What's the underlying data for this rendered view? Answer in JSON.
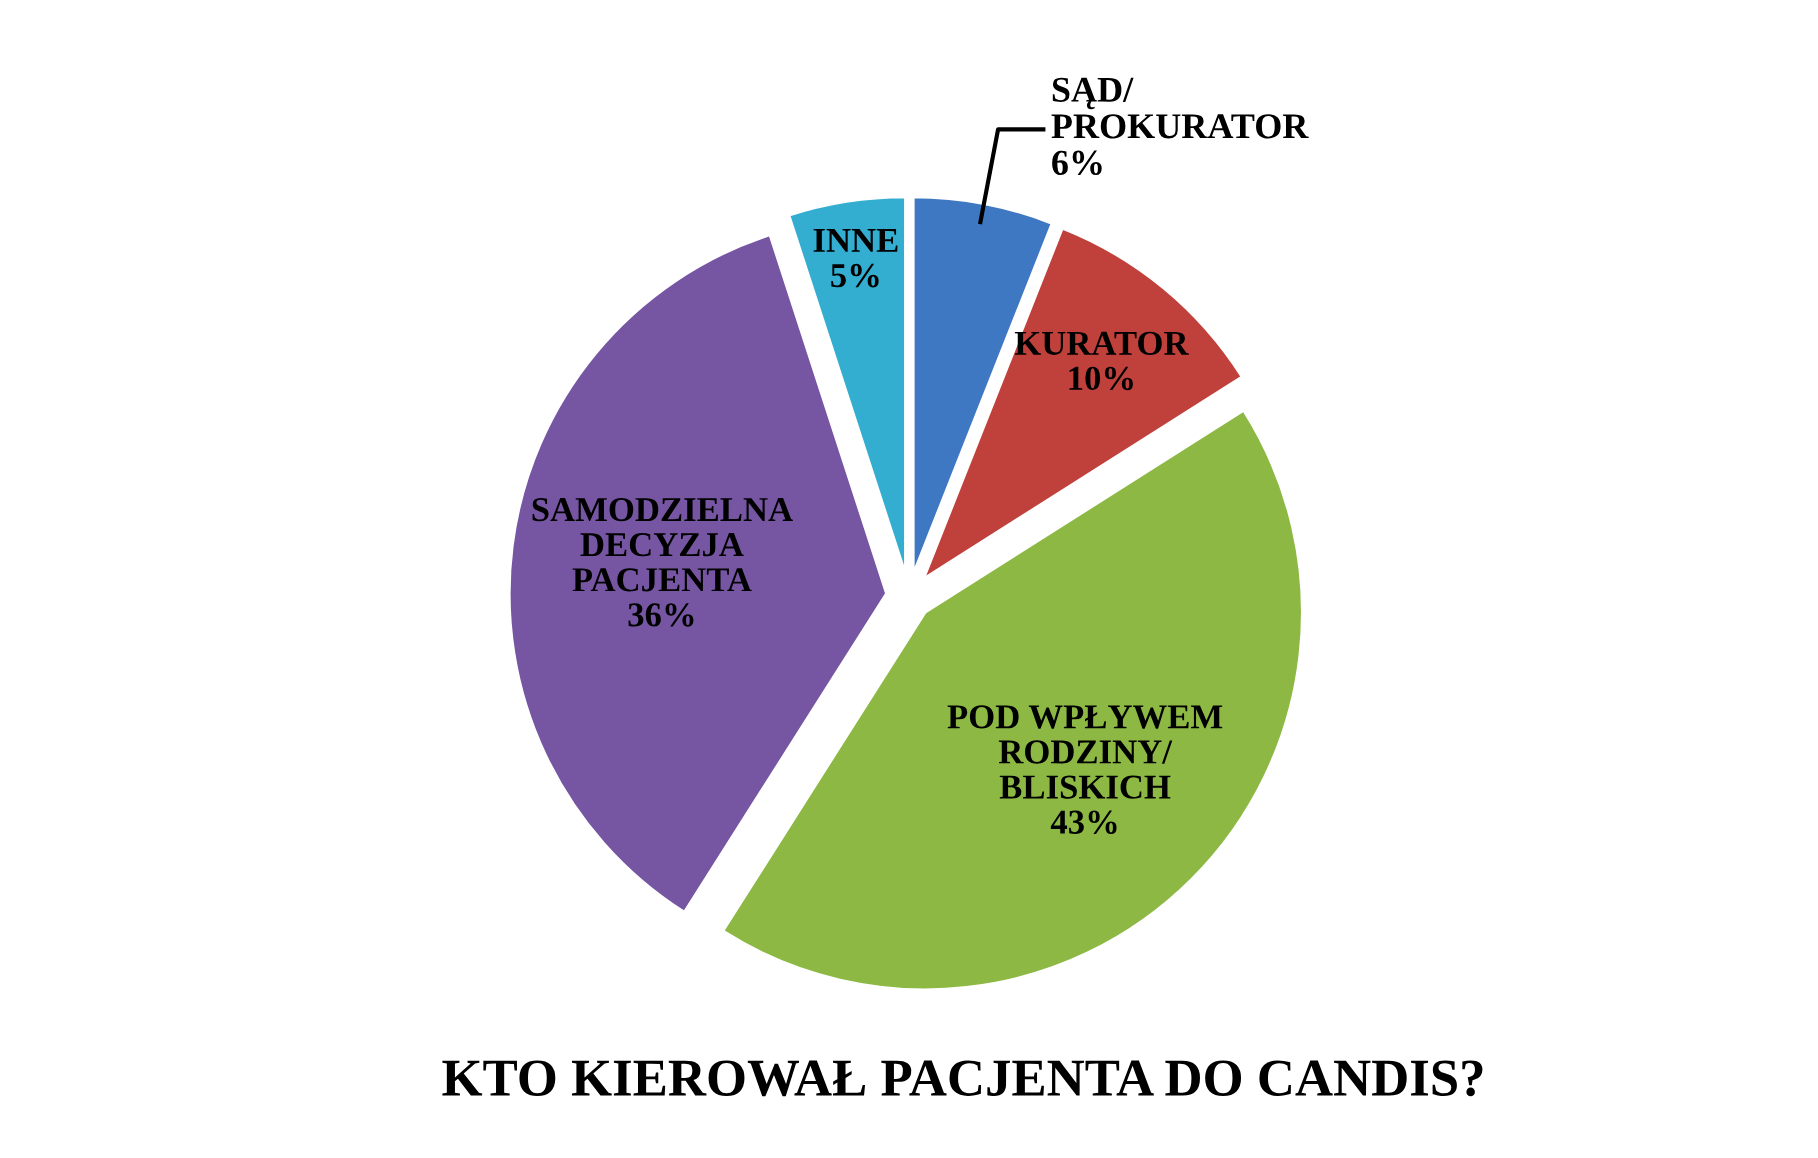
{
  "chart_data": {
    "type": "pie",
    "title": "KTO KIEROWAŁ PACJENTA DO CANDIS?",
    "categories": [
      "SĄD/\nPROKURATOR",
      "KURATOR",
      "POD WPŁYWEM\nRODZINY/\nBLISKICH",
      "SAMODZIELNA\nDECYZJA\nPACJENTA",
      "INNE"
    ],
    "values": [
      6,
      10,
      43,
      36,
      5
    ],
    "value_labels": [
      "6%",
      "10%",
      "43%",
      "36%",
      "5%"
    ],
    "colors": [
      "#3f78c2",
      "#c0413b",
      "#8cb843",
      "#7656a3",
      "#33aed1"
    ],
    "legend": false
  }
}
